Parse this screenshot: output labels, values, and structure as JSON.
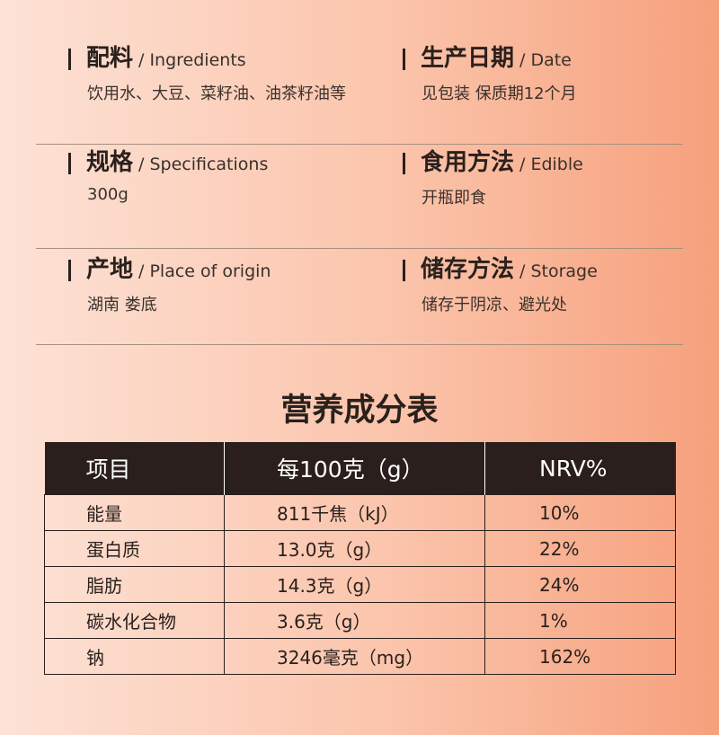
{
  "info": [
    {
      "left": {
        "cn": "配料",
        "en": "/ Ingredients",
        "value": "饮用水、大豆、菜籽油、油茶籽油等"
      },
      "right": {
        "cn": "生产日期",
        "en": "/ Date",
        "value": "见包装 保质期12个月"
      }
    },
    {
      "left": {
        "cn": "规格",
        "en": "/ Specifications",
        "value": "300g"
      },
      "right": {
        "cn": "食用方法",
        "en": "/ Edible",
        "value": "开瓶即食"
      }
    },
    {
      "left": {
        "cn": "产地",
        "en": "/ Place of origin",
        "value": "湖南 娄底"
      },
      "right": {
        "cn": "储存方法",
        "en": "/ Storage",
        "value": "储存于阴凉、避光处"
      }
    }
  ],
  "nutrition": {
    "title": "营养成分表",
    "headers": [
      "项目",
      "每100克（g）",
      "NRV%"
    ],
    "rows": [
      [
        "能量",
        "811千焦（kJ）",
        "10%"
      ],
      [
        "蛋白质",
        "13.0克（g）",
        "22%"
      ],
      [
        "脂肪",
        "14.3克（g）",
        "24%"
      ],
      [
        "碳水化合物",
        "3.6克（g）",
        "1%"
      ],
      [
        "钠",
        "3246毫克（mg）",
        "162%"
      ]
    ]
  }
}
